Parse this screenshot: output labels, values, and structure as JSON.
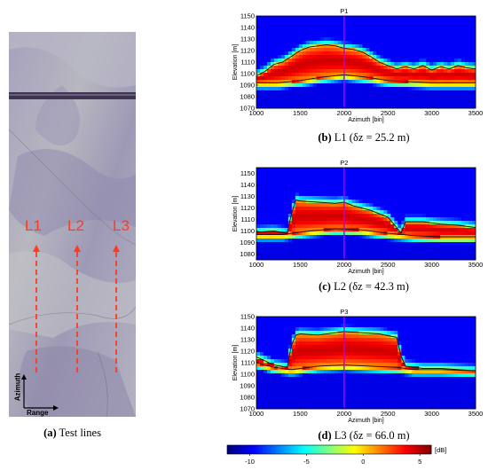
{
  "panel_a": {
    "lines": [
      "L1",
      "L2",
      "L3"
    ],
    "axis_azimuth": "Azimuth",
    "axis_range": "Range",
    "caption_letter": "(a)",
    "caption_text": "Test lines"
  },
  "colors": {
    "dashed_line": "#ff3a1f",
    "profile_marker": "#b000ff",
    "curve": "#111111"
  },
  "colorbar": {
    "ticks": [
      "-10",
      "-5",
      "0",
      "5"
    ],
    "unit": "[dB]",
    "range": [
      -12,
      6
    ]
  },
  "chart_data": [
    {
      "type": "heatmap",
      "title": "P1",
      "xlabel": "Azimuth [bin]",
      "ylabel": "Elevation [m]",
      "xlim": [
        1000,
        3500
      ],
      "ylim": [
        1070,
        1150
      ],
      "xticks": [
        "1000",
        "1500",
        "2000",
        "2500",
        "3000",
        "3500"
      ],
      "yticks": [
        "1070",
        "1080",
        "1090",
        "1100",
        "1110",
        "1120",
        "1130",
        "1140",
        "1150"
      ],
      "marker_x": 2000,
      "caption_letter": "(b)",
      "caption_text": "L1 (δz = 25.2 m)",
      "upper_curve": {
        "x": [
          1000,
          1100,
          1200,
          1300,
          1400,
          1500,
          1600,
          1700,
          1800,
          1900,
          2000,
          2100,
          2200,
          2300,
          2400,
          2500,
          2600,
          2700,
          2800,
          2900,
          3000,
          3100,
          3200,
          3300,
          3400,
          3500
        ],
        "y": [
          1098,
          1102,
          1108,
          1110,
          1115,
          1120,
          1123,
          1124,
          1125,
          1124,
          1122,
          1121,
          1119,
          1115,
          1110,
          1107,
          1104,
          1106,
          1104,
          1107,
          1103,
          1106,
          1104,
          1107,
          1105,
          1104
        ]
      },
      "lower_curve": {
        "x": [
          1000,
          1250,
          1500,
          1750,
          2000,
          2250,
          2500,
          2750,
          3000,
          3250,
          3500
        ],
        "y": [
          1092,
          1092,
          1094,
          1097,
          1099,
          1097,
          1094,
          1093,
          1092,
          1092,
          1092
        ]
      }
    },
    {
      "type": "heatmap",
      "title": "P2",
      "xlabel": "Azimuth [bin]",
      "ylabel": "Elevation [m]",
      "xlim": [
        1000,
        3500
      ],
      "ylim": [
        1075,
        1155
      ],
      "xticks": [
        "1000",
        "1500",
        "2000",
        "2500",
        "3000",
        "3500"
      ],
      "yticks": [
        "1080",
        "1090",
        "1100",
        "1110",
        "1120",
        "1130",
        "1140",
        "1150"
      ],
      "marker_x": 2000,
      "caption_letter": "(c)",
      "caption_text": "L2 (δz = 42.3 m)",
      "upper_curve": {
        "x": [
          1000,
          1200,
          1350,
          1400,
          1450,
          1500,
          1700,
          1900,
          2000,
          2100,
          2300,
          2500,
          2600,
          2650,
          2700,
          2900,
          3100,
          3300,
          3500
        ],
        "y": [
          1099,
          1100,
          1098,
          1115,
          1127,
          1126,
          1125,
          1124,
          1125,
          1122,
          1118,
          1112,
          1103,
          1098,
          1108,
          1108,
          1106,
          1105,
          1103
        ]
      },
      "lower_curve": {
        "x": [
          1000,
          1300,
          1600,
          1900,
          2200,
          2500,
          2800,
          3100,
          3500
        ],
        "y": [
          1097,
          1097,
          1100,
          1102,
          1101,
          1098,
          1096,
          1095,
          1095
        ]
      }
    },
    {
      "type": "heatmap",
      "title": "P3",
      "xlabel": "Azimuth [bin]",
      "ylabel": "Elevation [m]",
      "xlim": [
        1000,
        3500
      ],
      "ylim": [
        1070,
        1150
      ],
      "xticks": [
        "1000",
        "1500",
        "2000",
        "2500",
        "3000",
        "3500"
      ],
      "yticks": [
        "1070",
        "1080",
        "1090",
        "1100",
        "1110",
        "1120",
        "1130",
        "1140",
        "1150"
      ],
      "marker_x": 2000,
      "caption_letter": "(d)",
      "caption_text": "L3 (δz = 66.0 m)",
      "upper_curve": {
        "x": [
          1000,
          1200,
          1350,
          1400,
          1450,
          1500,
          1700,
          1900,
          2000,
          2200,
          2400,
          2600,
          2650,
          2700,
          2900,
          3100,
          3300,
          3500
        ],
        "y": [
          1115,
          1108,
          1106,
          1125,
          1134,
          1135,
          1134,
          1136,
          1137,
          1136,
          1135,
          1132,
          1116,
          1107,
          1105,
          1105,
          1104,
          1103
        ]
      },
      "lower_curve": {
        "x": [
          1000,
          1200,
          1400,
          1700,
          2000,
          2300,
          2600,
          2800,
          3100,
          3500
        ],
        "y": [
          1110,
          1106,
          1104,
          1107,
          1108,
          1107,
          1106,
          1104,
          1104,
          1103
        ]
      }
    }
  ]
}
